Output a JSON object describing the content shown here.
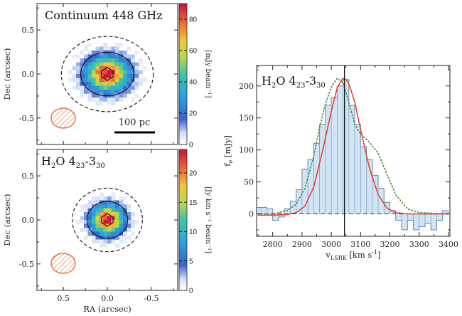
{
  "chart_data": [
    {
      "type": "heatmap",
      "title": "Continuum 448 GHz",
      "xlabel": "",
      "ylabel": "Dec (arcsec)",
      "xlim": [
        0.8,
        -0.8
      ],
      "ylim": [
        -0.8,
        0.8
      ],
      "yticks": [
        "0.5",
        "0.0",
        "-0.5"
      ],
      "colorbar": {
        "label": "[mJy beam⁻¹]",
        "range": [
          0,
          90
        ],
        "ticks": [
          "0",
          "20",
          "40",
          "60",
          "80"
        ]
      },
      "peak": 90,
      "scalebar_label": "100 pc",
      "beam": {
        "shape": "ellipse",
        "color": "#e8743b"
      },
      "source": {
        "center": [
          0.0,
          0.0
        ],
        "size_arcsec": [
          0.55,
          0.45
        ]
      },
      "contours": [
        "dashed outer",
        "solid inner",
        "solid peak"
      ]
    },
    {
      "type": "heatmap",
      "title": "H₂O 4₂₃-3₃₀",
      "title_parts": {
        "main": "H",
        "sub1": "2",
        "mid": "O 4",
        "sub2": "23",
        "dash": "-3",
        "sub3": "30"
      },
      "xlabel": "RA (arcsec)",
      "ylabel": "Dec (arcsec)",
      "xlim": [
        0.8,
        -0.8
      ],
      "ylim": [
        -0.8,
        0.8
      ],
      "xticks": [
        "0.5",
        "0.0",
        "-0.5"
      ],
      "yticks": [
        "0.5",
        "0.0",
        "-0.5"
      ],
      "colorbar": {
        "label": "[Jy km s⁻¹ beam⁻¹]",
        "range": [
          0,
          24
        ],
        "ticks": [
          "0",
          "5",
          "10",
          "15",
          "20"
        ]
      },
      "peak": 24,
      "beam": {
        "shape": "ellipse",
        "color": "#e8743b"
      },
      "source": {
        "center": [
          0.0,
          0.0
        ],
        "size_arcsec": [
          0.42,
          0.38
        ]
      },
      "contours": [
        "dashed outer",
        "solid inner",
        "solid peak"
      ]
    },
    {
      "type": "line",
      "title": "H₂O 4₂₃-3₃₀",
      "title_parts": {
        "main": "H",
        "sub1": "2",
        "mid": "O 4",
        "sub2": "23",
        "dash": "-3",
        "sub3": "30"
      },
      "xlabel": "v_LSRK [km s⁻¹]",
      "xlabel_parts": {
        "main": "v",
        "sub": "LSRK",
        "unit": " [km s",
        "sup": "-1",
        "close": "]"
      },
      "ylabel": "f_ν [mJy]",
      "ylabel_parts": {
        "main": "f",
        "sub": "ν",
        "unit": " [mJy]"
      },
      "xlim": [
        2745,
        3405
      ],
      "ylim": [
        -35,
        232
      ],
      "xticks": [
        2800,
        2900,
        3000,
        3100,
        3200,
        3300,
        3400
      ],
      "yticks": [
        0,
        50,
        100,
        150,
        200
      ],
      "vline_x": 3045,
      "series": [
        {
          "style": "histogram",
          "color": "#6a8aa8",
          "fill": "#cfe5f5",
          "x": [
            2750,
            2770,
            2790,
            2810,
            2830,
            2850,
            2870,
            2890,
            2910,
            2930,
            2950,
            2970,
            2990,
            3010,
            3030,
            3050,
            3070,
            3090,
            3110,
            3130,
            3150,
            3170,
            3190,
            3210,
            3230,
            3250,
            3270,
            3290,
            3310,
            3330,
            3350,
            3370,
            3390
          ],
          "y": [
            10,
            10,
            8,
            -10,
            -5,
            8,
            20,
            38,
            70,
            85,
            110,
            140,
            170,
            182,
            200,
            210,
            170,
            140,
            105,
            85,
            60,
            40,
            18,
            5,
            -10,
            -25,
            -10,
            -25,
            -20,
            -15,
            -25,
            -10,
            5
          ]
        },
        {
          "style": "line",
          "color": "#e8432d",
          "x": [
            2750,
            2800,
            2850,
            2880,
            2910,
            2940,
            2970,
            3000,
            3020,
            3040,
            3050,
            3060,
            3080,
            3100,
            3130,
            3160,
            3190,
            3220,
            3260,
            3300,
            3400
          ],
          "y": [
            -2,
            -2,
            -1,
            2,
            12,
            42,
            98,
            160,
            197,
            212,
            210,
            204,
            175,
            132,
            72,
            30,
            9,
            2,
            0,
            0,
            0
          ]
        },
        {
          "style": "dotted",
          "color": "#4a8a3a",
          "x": [
            2750,
            2800,
            2850,
            2880,
            2910,
            2940,
            2960,
            2980,
            3000,
            3020,
            3040,
            3060,
            3080,
            3100,
            3130,
            3160,
            3190,
            3220,
            3260,
            3300,
            3400
          ],
          "y": [
            0,
            0,
            5,
            15,
            40,
            90,
            135,
            172,
            198,
            212,
            205,
            175,
            140,
            125,
            112,
            95,
            62,
            30,
            8,
            2,
            0
          ]
        }
      ]
    }
  ]
}
